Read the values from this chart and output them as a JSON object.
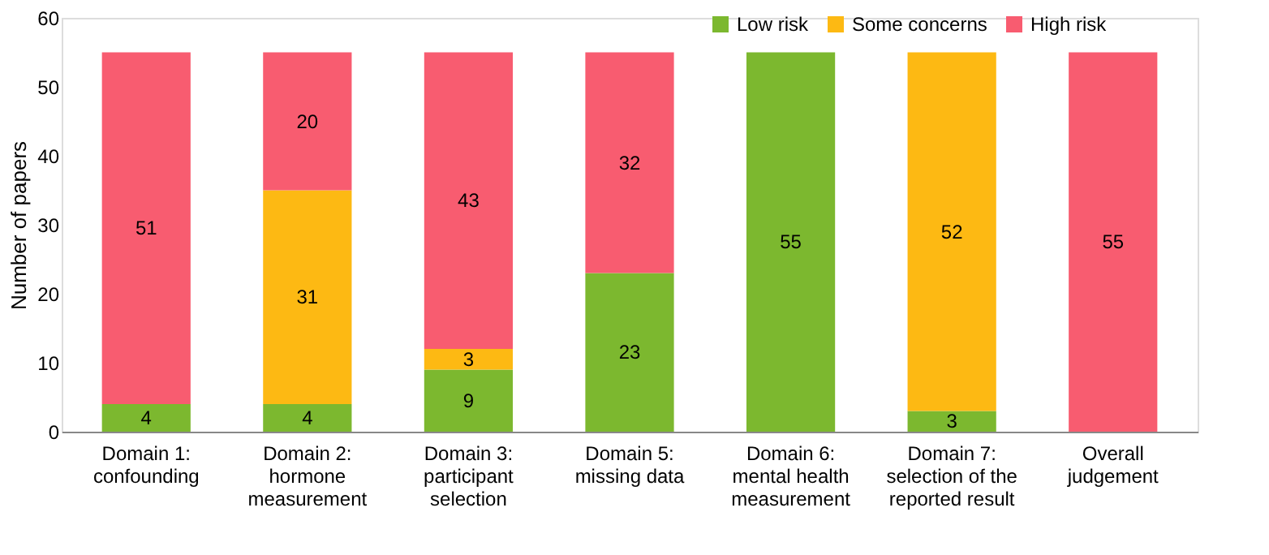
{
  "chart_data": {
    "type": "bar",
    "stacked": true,
    "ylabel": "Number of papers",
    "categories": [
      "Domain 1:\nconfounding",
      "Domain 2:\nhormone\nmeasurement",
      "Domain 3:\nparticipant\nselection",
      "Domain 5:\nmissing data",
      "Domain 6:\nmental health\nmeasurement",
      "Domain 7:\nselection of the\nreported result",
      "Overall\njudgement"
    ],
    "series": [
      {
        "name": "Low risk",
        "color": "#7cb82f",
        "values": [
          4,
          4,
          9,
          23,
          55,
          3,
          0
        ],
        "value_labels": [
          "4",
          "4",
          "9",
          "23",
          "55",
          "3",
          null
        ]
      },
      {
        "name": "Some concerns",
        "color": "#fdb913",
        "values": [
          0,
          31,
          3,
          0,
          0,
          52,
          0
        ],
        "value_labels": [
          null,
          "31",
          "3",
          null,
          null,
          "52",
          null
        ]
      },
      {
        "name": "High risk",
        "color": "#f85c70",
        "values": [
          51,
          20,
          43,
          32,
          0,
          0,
          55
        ],
        "value_labels": [
          "51",
          "20",
          "43",
          "32",
          null,
          null,
          "55"
        ]
      }
    ],
    "ylim": [
      0,
      60
    ],
    "yticks": [
      0,
      10,
      20,
      30,
      40,
      50,
      60
    ],
    "grid": false,
    "legend": "top right"
  }
}
